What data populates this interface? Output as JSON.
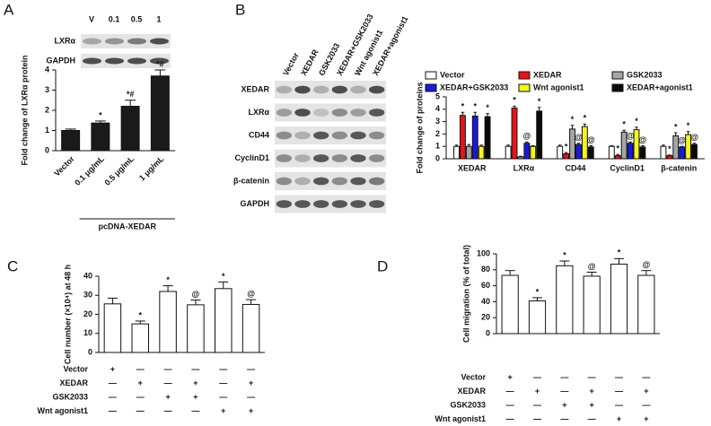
{
  "panel_labels": [
    "A",
    "B",
    "C",
    "D"
  ],
  "blot_a": {
    "lanes": [
      "V",
      "0.1",
      "0.5",
      "1"
    ],
    "rows": [
      "LXRα",
      "GAPDH"
    ]
  },
  "blot_b": {
    "lanes": [
      "Vector",
      "XEDAR",
      "GSK2033",
      "XEDAR+GSK2033",
      "Wnt agonist1",
      "XEDAR+agonist1"
    ],
    "rows": [
      "XEDAR",
      "LXRα",
      "CD44",
      "CyclinD1",
      "β-catenin",
      "GAPDH"
    ]
  },
  "chart_data": [
    {
      "type": "bar",
      "y_label": "Fold change of LXRα protein",
      "categories": [
        "Vector",
        "0.1 μg/mL",
        "0.5 μg/mL",
        "1 μg/mL"
      ],
      "group_label": "pcDNA-XEDAR",
      "values": [
        1.0,
        1.37,
        2.2,
        3.7
      ],
      "errors": [
        0.07,
        0.1,
        0.3,
        0.3
      ],
      "markers": [
        null,
        "*",
        "*#",
        "*#"
      ],
      "color": "#1a1a1a",
      "ylim": [
        0,
        4
      ],
      "yticks": [
        0,
        1,
        2,
        3,
        4
      ]
    },
    {
      "type": "grouped-bar",
      "y_label": "Fold change of proteins",
      "categories": [
        "XEDAR",
        "LXRα",
        "CD44",
        "CyclinD1",
        "β-catenin"
      ],
      "legend": "top",
      "series": [
        {
          "name": "Vector",
          "color": "#ffffff",
          "values": [
            1,
            1,
            1,
            1,
            1
          ],
          "errors": [
            0.1,
            0.1,
            0.1,
            0.05,
            0.1
          ],
          "markers": [
            null,
            null,
            null,
            null,
            null
          ]
        },
        {
          "name": "XEDAR",
          "color": "#e8141b",
          "values": [
            3.5,
            4.1,
            0.4,
            0.25,
            0.25
          ],
          "errors": [
            0.25,
            0.15,
            0.1,
            0.1,
            0.05
          ],
          "markers": [
            "*",
            "*",
            "*",
            "*",
            "*"
          ]
        },
        {
          "name": "GSK2033",
          "color": "#a6a6a6",
          "values": [
            1,
            0.15,
            2.4,
            2.15,
            1.85
          ],
          "errors": [
            0.15,
            0.05,
            0.3,
            0.15,
            0.25
          ],
          "markers": [
            null,
            null,
            "*",
            "*",
            "*"
          ]
        },
        {
          "name": "XEDAR+GSK2033",
          "color": "#1a1adb",
          "values": [
            3.45,
            1.25,
            1.15,
            1.25,
            0.95
          ],
          "errors": [
            0.3,
            0.1,
            0.1,
            0.1,
            0.05
          ],
          "markers": [
            "*",
            "@",
            "@",
            "@",
            "@"
          ]
        },
        {
          "name": "Wnt agonist1",
          "color": "#f5f51e",
          "values": [
            1,
            1.0,
            2.6,
            2.35,
            1.95
          ],
          "errors": [
            0.1,
            0.05,
            0.2,
            0.2,
            0.25
          ],
          "markers": [
            null,
            null,
            "*",
            "*",
            "*"
          ]
        },
        {
          "name": "XEDAR+agonist1",
          "color": "#0a0a0a",
          "values": [
            3.4,
            3.85,
            0.95,
            0.95,
            1.15
          ],
          "errors": [
            0.25,
            0.3,
            0.1,
            0.1,
            0.1
          ],
          "markers": [
            "*",
            "*",
            "@",
            "@",
            "@"
          ]
        }
      ],
      "ylim": [
        0,
        5
      ],
      "yticks": [
        0,
        1,
        2,
        3,
        4,
        5
      ]
    },
    {
      "type": "bar",
      "y_label": "Cell number (×10⁴) at 48 h",
      "values": [
        25.5,
        15,
        32,
        25,
        33.5,
        25.2
      ],
      "errors": [
        3,
        1.5,
        3,
        2.5,
        3.5,
        2.5
      ],
      "markers": [
        null,
        "*",
        "*",
        "@",
        "*",
        "@"
      ],
      "color": "#ffffff",
      "ylim": [
        0,
        40
      ],
      "yticks": [
        0,
        10,
        20,
        30,
        40
      ],
      "treatments": [
        {
          "name": "Vector",
          "signs": [
            "+",
            "—",
            "—",
            "—",
            "—",
            "—"
          ]
        },
        {
          "name": "XEDAR",
          "signs": [
            "—",
            "+",
            "—",
            "+",
            "—",
            "+"
          ]
        },
        {
          "name": "GSK2033",
          "signs": [
            "—",
            "—",
            "+",
            "+",
            "—",
            "—"
          ]
        },
        {
          "name": "Wnt agonist1",
          "signs": [
            "—",
            "—",
            "—",
            "—",
            "+",
            "+"
          ]
        }
      ]
    },
    {
      "type": "bar",
      "y_label": "Cell migration (% of total)",
      "values": [
        73,
        41,
        85,
        72,
        87,
        73
      ],
      "errors": [
        6,
        4,
        6,
        5,
        7,
        6
      ],
      "markers": [
        null,
        "*",
        "*",
        "@",
        "*",
        "@"
      ],
      "color": "#ffffff",
      "ylim": [
        0,
        100
      ],
      "yticks": [
        0,
        20,
        40,
        60,
        80,
        100
      ],
      "treatments": [
        {
          "name": "Vector",
          "signs": [
            "+",
            "—",
            "—",
            "—",
            "—",
            "—"
          ]
        },
        {
          "name": "XEDAR",
          "signs": [
            "—",
            "+",
            "—",
            "+",
            "—",
            "+"
          ]
        },
        {
          "name": "GSK2033",
          "signs": [
            "—",
            "—",
            "+",
            "+",
            "—",
            "—"
          ]
        },
        {
          "name": "Wnt agonist1",
          "signs": [
            "—",
            "—",
            "—",
            "—",
            "+",
            "+"
          ]
        }
      ]
    }
  ]
}
